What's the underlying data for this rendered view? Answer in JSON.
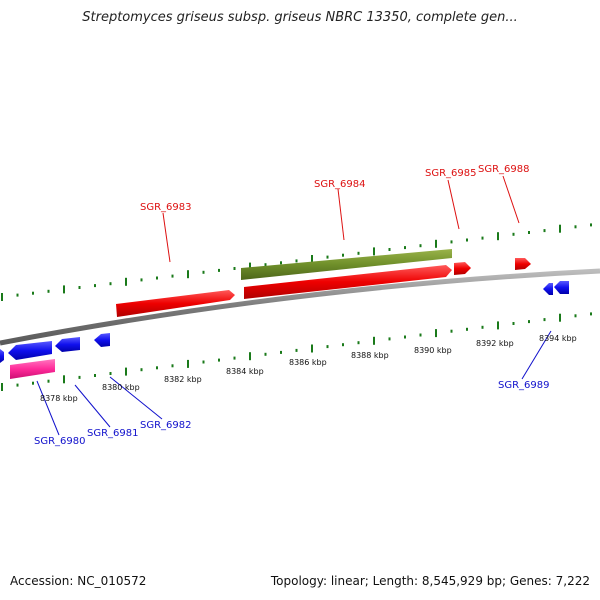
{
  "title": "Streptomyces griseus subsp. griseus NBRC 13350, complete gen...",
  "footer": {
    "accession": "Accession: NC_010572",
    "summary": "Topology: linear; Length: 8,545,929 bp; Genes: 7,222"
  },
  "colors": {
    "forward_gene": "#ff1a1a",
    "reverse_gene": "#1a1aff",
    "rna_gene": "#2b8a2b",
    "cds_olive": "#6f8f2a",
    "pink_gene": "#ff3399",
    "axis": "#808080",
    "ticks": "#1a7a1a"
  },
  "ruler_labels": [
    "8378 kbp",
    "8380 kbp",
    "8382 kbp",
    "8384 kbp",
    "8386 kbp",
    "8388 kbp",
    "8390 kbp",
    "8392 kbp",
    "8394 kbp"
  ],
  "forward_labels": [
    "SGR_6983",
    "SGR_6984",
    "SGR_6985",
    "SGR_6988"
  ],
  "reverse_labels": [
    "SGR_6980",
    "SGR_6981",
    "SGR_6982",
    "SGR_6989"
  ],
  "genes": [
    {
      "name": "SGR_6983",
      "strand": "forward",
      "color": "#ff1a1a"
    },
    {
      "name": "SGR_6984",
      "strand": "forward",
      "color": "#ff1a1a"
    },
    {
      "name": "SGR_6984_cds",
      "strand": "forward",
      "color": "#6f8f2a"
    },
    {
      "name": "SGR_6985",
      "strand": "forward",
      "color": "#ff1a1a"
    },
    {
      "name": "SGR_6988",
      "strand": "forward",
      "color": "#ff1a1a"
    },
    {
      "name": "SGR_6980",
      "strand": "reverse",
      "color": "#ff3399"
    },
    {
      "name": "SGR_6981",
      "strand": "reverse",
      "color": "#1a1aff"
    },
    {
      "name": "SGR_6982",
      "strand": "reverse",
      "color": "#1a1aff"
    },
    {
      "name": "SGR_6989",
      "strand": "reverse",
      "color": "#1a1aff"
    }
  ]
}
